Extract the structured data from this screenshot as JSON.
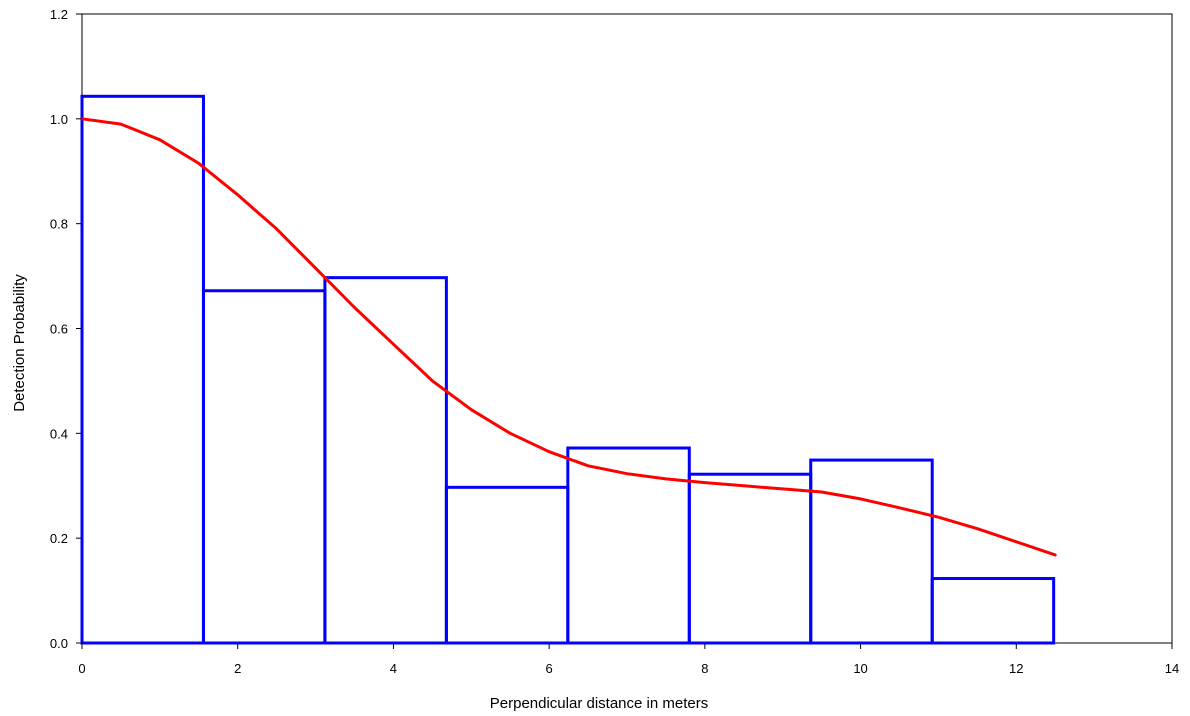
{
  "chart_data": {
    "type": "bar",
    "xlabel": "Perpendicular distance in meters",
    "ylabel": "Detection Probability",
    "xlim": [
      0,
      14
    ],
    "ylim": [
      0,
      1.2
    ],
    "x_ticks": [
      "0",
      "2",
      "4",
      "6",
      "8",
      "10",
      "12",
      "14"
    ],
    "y_ticks": [
      "0.0",
      "0.2",
      "0.4",
      "0.6",
      "0.8",
      "1.0",
      "1.2"
    ],
    "histogram": {
      "bin_edges": [
        0,
        1.56,
        3.12,
        4.68,
        6.24,
        7.8,
        9.36,
        10.92,
        12.48
      ],
      "values": [
        1.043,
        0.672,
        0.697,
        0.297,
        0.372,
        0.322,
        0.349,
        0.123
      ],
      "color": "#0000ff"
    },
    "fitted_curve": {
      "x": [
        0,
        0.5,
        1.0,
        1.5,
        2.0,
        2.5,
        3.0,
        3.5,
        4.0,
        4.5,
        5.0,
        5.5,
        6.0,
        6.5,
        7.0,
        7.5,
        8.0,
        8.5,
        9.0,
        9.5,
        10.0,
        10.5,
        11.0,
        11.5,
        12.0,
        12.5
      ],
      "y": [
        1.0,
        0.99,
        0.96,
        0.915,
        0.855,
        0.79,
        0.715,
        0.64,
        0.57,
        0.5,
        0.445,
        0.4,
        0.365,
        0.338,
        0.323,
        0.313,
        0.306,
        0.3,
        0.294,
        0.288,
        0.275,
        0.258,
        0.24,
        0.218,
        0.193,
        0.168
      ],
      "color": "#ff0000"
    }
  }
}
